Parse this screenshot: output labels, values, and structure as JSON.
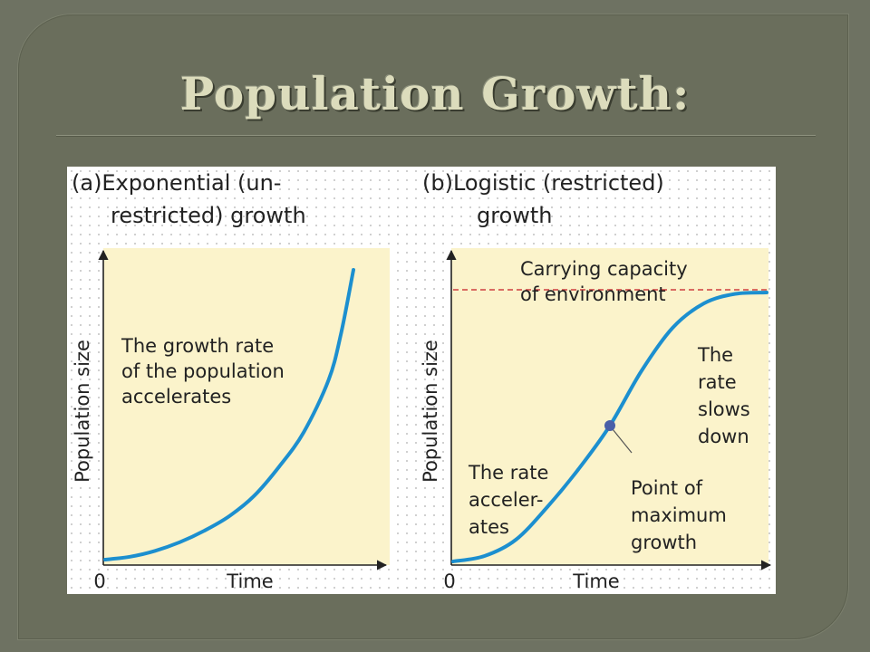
{
  "slide": {
    "title": "Population Growth:"
  },
  "chart_data": [
    {
      "type": "line",
      "panel": "(a)",
      "title": "Exponential (un-restricted) growth",
      "title_lines": [
        "(a)Exponential (un-",
        "restricted) growth"
      ],
      "xlabel": "Time",
      "ylabel": "Population size",
      "x_tick_labels": [
        "0"
      ],
      "xlim": [
        0,
        1
      ],
      "ylim": [
        0,
        1
      ],
      "background_color": "#fbf3cb",
      "series": [
        {
          "color": "#1c8fcf",
          "x": [
            0,
            0.1,
            0.2,
            0.3,
            0.4,
            0.5,
            0.6,
            0.7,
            0.8,
            0.9,
            0.95,
            1.0
          ],
          "values": [
            0.0,
            0.01,
            0.03,
            0.06,
            0.1,
            0.15,
            0.22,
            0.32,
            0.44,
            0.62,
            0.78,
            1.0
          ]
        }
      ],
      "annotations": [
        {
          "lines": [
            "The growth rate",
            "of the population",
            "accelerates"
          ]
        }
      ]
    },
    {
      "type": "line",
      "panel": "(b)",
      "title": "Logistic (restricted) growth",
      "title_lines": [
        "(b)Logistic (restricted)",
        "growth"
      ],
      "xlabel": "Time",
      "ylabel": "Population size",
      "x_tick_labels": [
        "0"
      ],
      "xlim": [
        0,
        1
      ],
      "ylim": [
        0,
        1.1
      ],
      "background_color": "#fbf3cb",
      "carrying_capacity": 1.0,
      "carrying_capacity_color": "#d04040",
      "series": [
        {
          "color": "#1c8fcf",
          "x": [
            0,
            0.1,
            0.2,
            0.3,
            0.4,
            0.5,
            0.6,
            0.7,
            0.8,
            0.9,
            1.0
          ],
          "values": [
            0.0,
            0.02,
            0.08,
            0.2,
            0.34,
            0.5,
            0.7,
            0.86,
            0.95,
            0.985,
            0.99
          ]
        }
      ],
      "inflection_point": {
        "x": 0.5,
        "y": 0.5,
        "color": "#4a5fa8"
      },
      "annotations": [
        {
          "lines": [
            "Carrying capacity",
            "of environment"
          ]
        },
        {
          "lines": [
            "The",
            "rate",
            "slows",
            "down"
          ]
        },
        {
          "lines": [
            "The rate",
            "acceler-",
            "ates"
          ]
        },
        {
          "lines": [
            "Point of",
            "maximum",
            "growth"
          ]
        }
      ]
    }
  ]
}
